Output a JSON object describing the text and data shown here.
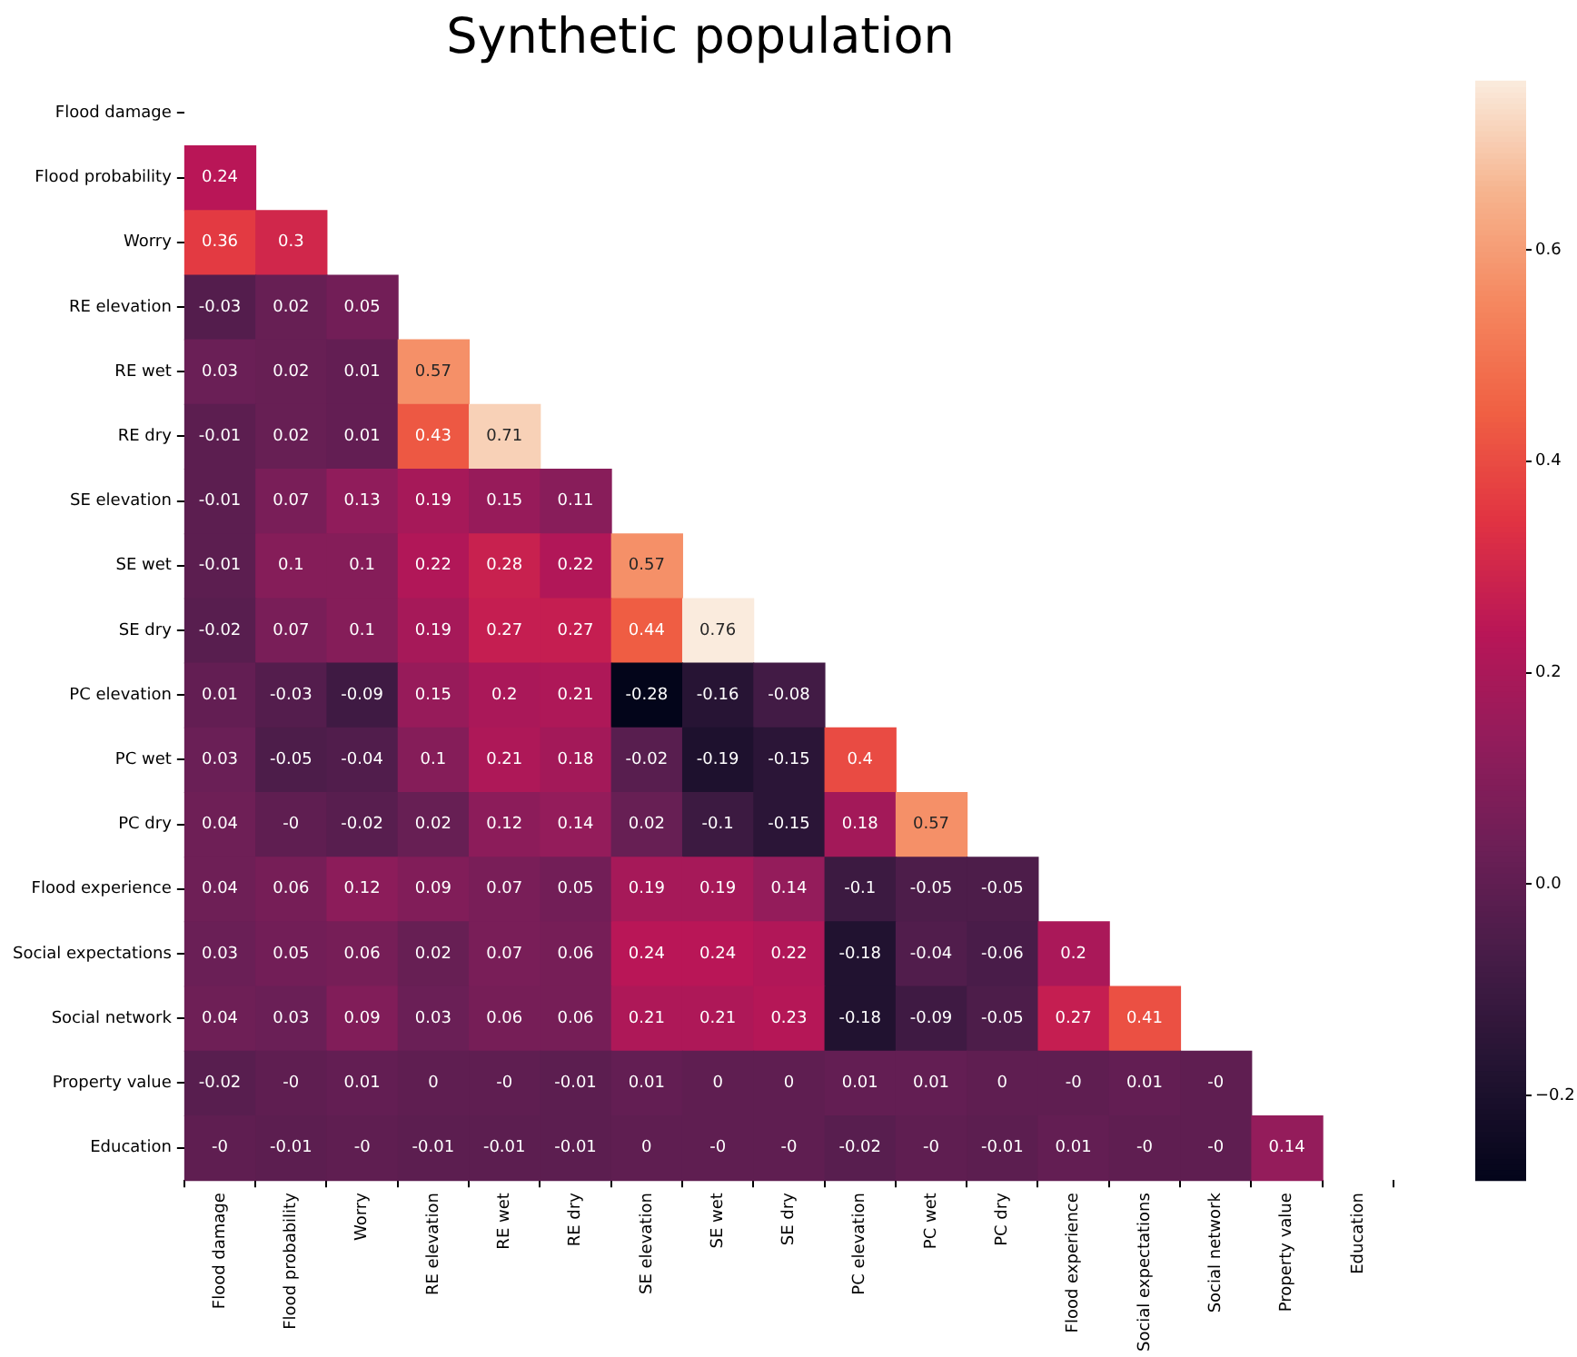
{
  "chart_data": {
    "type": "heatmap",
    "title": "Synthetic population",
    "categories": [
      "Flood damage",
      "Flood probability",
      "Worry",
      "RE elevation",
      "RE wet",
      "RE dry",
      "SE elevation",
      "SE wet",
      "SE dry",
      "PC elevation",
      "PC wet",
      "PC dry",
      "Flood experience",
      "Social expectations",
      "Social network",
      "Property value",
      "Education"
    ],
    "y_categories": [
      "Flood damage",
      "Flood probability",
      "Worry",
      "RE elevation",
      "RE wet",
      "RE dry",
      "SE elevation",
      "SE wet",
      "SE dry",
      "PC elevation",
      "PC wet",
      "PC dry",
      "Flood experience",
      "Social expectations",
      "Social network",
      "Property value",
      "Education"
    ],
    "cells": [
      [
        null,
        null,
        null,
        null,
        null,
        null,
        null,
        null,
        null,
        null,
        null,
        null,
        null,
        null,
        null,
        null,
        null
      ],
      [
        0.24,
        null,
        null,
        null,
        null,
        null,
        null,
        null,
        null,
        null,
        null,
        null,
        null,
        null,
        null,
        null,
        null
      ],
      [
        0.36,
        0.3,
        null,
        null,
        null,
        null,
        null,
        null,
        null,
        null,
        null,
        null,
        null,
        null,
        null,
        null,
        null
      ],
      [
        -0.03,
        0.02,
        0.05,
        null,
        null,
        null,
        null,
        null,
        null,
        null,
        null,
        null,
        null,
        null,
        null,
        null,
        null
      ],
      [
        0.03,
        0.02,
        0.01,
        0.57,
        null,
        null,
        null,
        null,
        null,
        null,
        null,
        null,
        null,
        null,
        null,
        null,
        null
      ],
      [
        -0.01,
        0.02,
        0.01,
        0.43,
        0.71,
        null,
        null,
        null,
        null,
        null,
        null,
        null,
        null,
        null,
        null,
        null,
        null
      ],
      [
        -0.01,
        0.07,
        0.13,
        0.19,
        0.15,
        0.11,
        null,
        null,
        null,
        null,
        null,
        null,
        null,
        null,
        null,
        null,
        null
      ],
      [
        -0.01,
        0.1,
        0.1,
        0.22,
        0.28,
        0.22,
        0.57,
        null,
        null,
        null,
        null,
        null,
        null,
        null,
        null,
        null,
        null
      ],
      [
        -0.02,
        0.07,
        0.1,
        0.19,
        0.27,
        0.27,
        0.44,
        0.76,
        null,
        null,
        null,
        null,
        null,
        null,
        null,
        null,
        null
      ],
      [
        0.01,
        -0.03,
        -0.09,
        0.15,
        0.2,
        0.21,
        -0.28,
        -0.16,
        -0.08,
        null,
        null,
        null,
        null,
        null,
        null,
        null,
        null
      ],
      [
        0.03,
        -0.05,
        -0.04,
        0.1,
        0.21,
        0.18,
        -0.02,
        -0.19,
        -0.15,
        0.4,
        null,
        null,
        null,
        null,
        null,
        null,
        null
      ],
      [
        0.04,
        0,
        -0.02,
        0.02,
        0.12,
        0.14,
        0.02,
        -0.1,
        -0.15,
        0.18,
        0.57,
        null,
        null,
        null,
        null,
        null,
        null
      ],
      [
        0.04,
        0.06,
        0.12,
        0.09,
        0.07,
        0.05,
        0.19,
        0.19,
        0.14,
        -0.1,
        -0.05,
        -0.05,
        null,
        null,
        null,
        null,
        null
      ],
      [
        0.03,
        0.05,
        0.06,
        0.02,
        0.07,
        0.06,
        0.24,
        0.24,
        0.22,
        -0.18,
        -0.04,
        -0.06,
        0.2,
        null,
        null,
        null,
        null
      ],
      [
        0.04,
        0.03,
        0.09,
        0.03,
        0.06,
        0.06,
        0.21,
        0.21,
        0.23,
        -0.18,
        -0.09,
        -0.05,
        0.27,
        0.41,
        null,
        null,
        null
      ],
      [
        -0.02,
        0,
        0.01,
        0,
        0,
        -0.01,
        0.01,
        0,
        0,
        0.01,
        0.01,
        0,
        0,
        0.01,
        0,
        null,
        null
      ],
      [
        0,
        -0.01,
        0,
        -0.01,
        -0.01,
        -0.01,
        0,
        0,
        0,
        -0.02,
        0,
        -0.01,
        0.01,
        0,
        0,
        0.14,
        null
      ]
    ],
    "cell_labels": [
      [
        null,
        null,
        null,
        null,
        null,
        null,
        null,
        null,
        null,
        null,
        null,
        null,
        null,
        null,
        null,
        null,
        null
      ],
      [
        "0.24",
        null,
        null,
        null,
        null,
        null,
        null,
        null,
        null,
        null,
        null,
        null,
        null,
        null,
        null,
        null,
        null
      ],
      [
        "0.36",
        "0.3",
        null,
        null,
        null,
        null,
        null,
        null,
        null,
        null,
        null,
        null,
        null,
        null,
        null,
        null,
        null
      ],
      [
        "-0.03",
        "0.02",
        "0.05",
        null,
        null,
        null,
        null,
        null,
        null,
        null,
        null,
        null,
        null,
        null,
        null,
        null,
        null
      ],
      [
        "0.03",
        "0.02",
        "0.01",
        "0.57",
        null,
        null,
        null,
        null,
        null,
        null,
        null,
        null,
        null,
        null,
        null,
        null,
        null
      ],
      [
        "-0.01",
        "0.02",
        "0.01",
        "0.43",
        "0.71",
        null,
        null,
        null,
        null,
        null,
        null,
        null,
        null,
        null,
        null,
        null,
        null
      ],
      [
        "-0.01",
        "0.07",
        "0.13",
        "0.19",
        "0.15",
        "0.11",
        null,
        null,
        null,
        null,
        null,
        null,
        null,
        null,
        null,
        null,
        null
      ],
      [
        "-0.01",
        "0.1",
        "0.1",
        "0.22",
        "0.28",
        "0.22",
        "0.57",
        null,
        null,
        null,
        null,
        null,
        null,
        null,
        null,
        null,
        null
      ],
      [
        "-0.02",
        "0.07",
        "0.1",
        "0.19",
        "0.27",
        "0.27",
        "0.44",
        "0.76",
        null,
        null,
        null,
        null,
        null,
        null,
        null,
        null,
        null
      ],
      [
        "0.01",
        "-0.03",
        "-0.09",
        "0.15",
        "0.2",
        "0.21",
        "-0.28",
        "-0.16",
        "-0.08",
        null,
        null,
        null,
        null,
        null,
        null,
        null,
        null
      ],
      [
        "0.03",
        "-0.05",
        "-0.04",
        "0.1",
        "0.21",
        "0.18",
        "-0.02",
        "-0.19",
        "-0.15",
        "0.4",
        null,
        null,
        null,
        null,
        null,
        null,
        null
      ],
      [
        "0.04",
        "-0",
        "-0.02",
        "0.02",
        "0.12",
        "0.14",
        "0.02",
        "-0.1",
        "-0.15",
        "0.18",
        "0.57",
        null,
        null,
        null,
        null,
        null,
        null
      ],
      [
        "0.04",
        "0.06",
        "0.12",
        "0.09",
        "0.07",
        "0.05",
        "0.19",
        "0.19",
        "0.14",
        "-0.1",
        "-0.05",
        "-0.05",
        null,
        null,
        null,
        null,
        null
      ],
      [
        "0.03",
        "0.05",
        "0.06",
        "0.02",
        "0.07",
        "0.06",
        "0.24",
        "0.24",
        "0.22",
        "-0.18",
        "-0.04",
        "-0.06",
        "0.2",
        null,
        null,
        null,
        null
      ],
      [
        "0.04",
        "0.03",
        "0.09",
        "0.03",
        "0.06",
        "0.06",
        "0.21",
        "0.21",
        "0.23",
        "-0.18",
        "-0.09",
        "-0.05",
        "0.27",
        "0.41",
        null,
        null,
        null
      ],
      [
        "-0.02",
        "-0",
        "0.01",
        "0",
        "-0",
        "-0.01",
        "0.01",
        "0",
        "0",
        "0.01",
        "0.01",
        "0",
        "-0",
        "0.01",
        "-0",
        null,
        null
      ],
      [
        "-0",
        "-0.01",
        "-0",
        "-0.01",
        "-0.01",
        "-0.01",
        "0",
        "-0",
        "-0",
        "-0.02",
        "-0",
        "-0.01",
        "0.01",
        "-0",
        "-0",
        "0.14",
        null
      ]
    ],
    "clim": [
      -0.28,
      0.76
    ],
    "cticks": [
      {
        "value": -0.2,
        "label": "−0.2"
      },
      {
        "value": 0,
        "label": "0.0"
      },
      {
        "value": 0.2,
        "label": "0.2"
      },
      {
        "value": 0.4,
        "label": "0.4"
      },
      {
        "value": 0.6,
        "label": "0.6"
      }
    ]
  }
}
